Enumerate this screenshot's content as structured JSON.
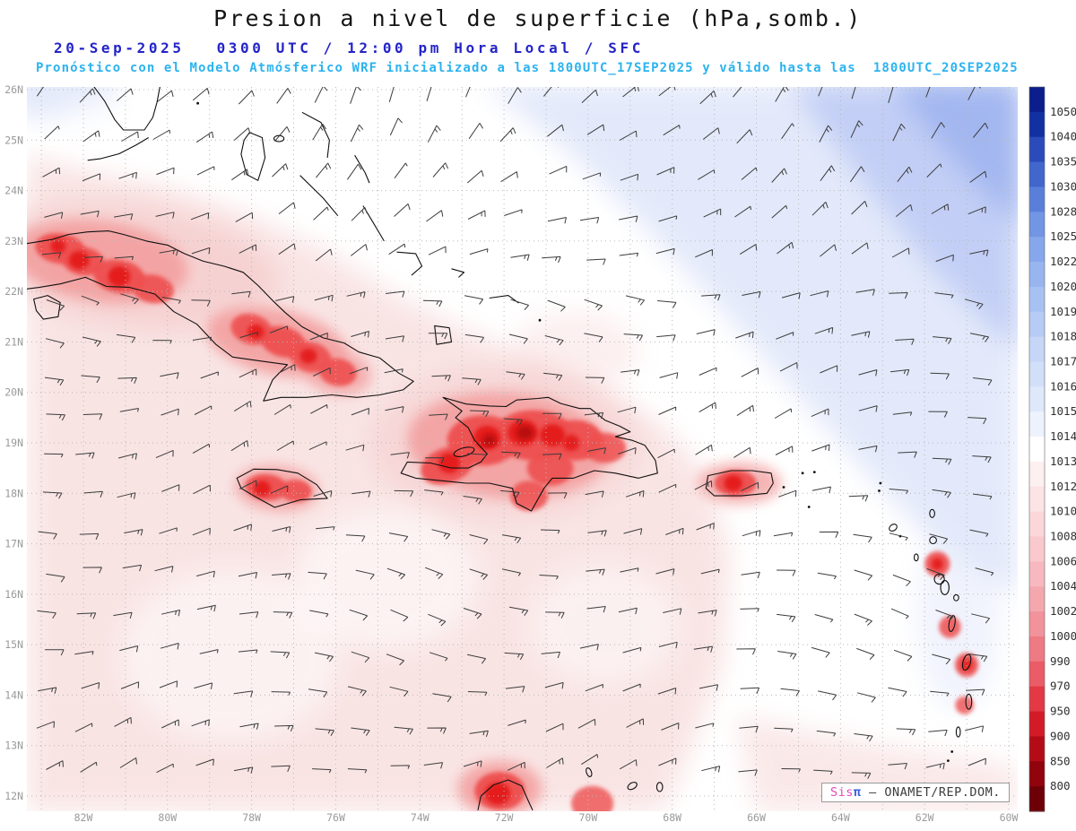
{
  "title": "Presion a nivel de superficie (hPa,somb.)",
  "header": {
    "date": "20-Sep-2025",
    "time": "0300 UTC / 12:00 pm Hora Local / SFC",
    "forecast": "Pronóstico con el Modelo Atmósferico WRF inicializado a las 1800UTC_17SEP2025 y válido hasta las  1800UTC_20SEP2025",
    "date_color": "#2424c8",
    "forecast_color": "#2cb3ef"
  },
  "credit": {
    "brand_a": "Sis",
    "brand_b": "π",
    "sep": " — ",
    "org": "ONAMET/REP.DOM.",
    "brand_a_color": "#e24ab8",
    "brand_b_color": "#3a5fd9"
  },
  "chart_data": {
    "type": "heatmap",
    "title": "Presion a nivel de superficie (hPa,somb.)",
    "units": "hPa",
    "model_run": "WRF inicializado 1800UTC_17SEP2025",
    "valid": "20-Sep-2025 0300 UTC / 12:00 pm Hora Local / SFC",
    "lat_ticks": [
      "26N",
      "25N",
      "24N",
      "23N",
      "22N",
      "21N",
      "20N",
      "19N",
      "18N",
      "17N",
      "16N",
      "15N",
      "14N",
      "13N",
      "12N"
    ],
    "lon_ticks": [
      "82W",
      "80W",
      "78W",
      "76W",
      "74W",
      "72W",
      "70W",
      "68W",
      "66W",
      "64W",
      "62W",
      "60W"
    ],
    "lon_extent_w": [
      83.35,
      59.8
    ],
    "lat_extent_n": [
      11.7,
      26.05
    ],
    "colorbar": {
      "levels": [
        1050,
        1040,
        1035,
        1030,
        1028,
        1025,
        1022,
        1020,
        1019,
        1018,
        1017,
        1016,
        1015,
        1014,
        1013,
        1012,
        1010,
        1008,
        1006,
        1004,
        1002,
        1000,
        990,
        970,
        950,
        900,
        850,
        800
      ],
      "colors": [
        "#0b1e8c",
        "#1230a2",
        "#2b4bba",
        "#4166cc",
        "#5a7fda",
        "#7295e4",
        "#87a7ec",
        "#99b5f0",
        "#a8c1f3",
        "#b7ccf5",
        "#c5d6f7",
        "#d2dff9",
        "#dfe8fb",
        "#edf2fd",
        "#ffffff",
        "#fdf0f1",
        "#fce3e5",
        "#fbd7da",
        "#f9c9ce",
        "#f7b9bf",
        "#f5a7ae",
        "#f2929b",
        "#ee7a84",
        "#ea5c67",
        "#e23944",
        "#d21b27",
        "#b40c17",
        "#91030d",
        "#6d0007"
      ]
    },
    "palette": {
      "pink_pale": "#f9e3e3",
      "pink_band": "#f5cbcb",
      "red_halo": "#f39c9c",
      "red_mid": "#ee5050",
      "red_core": "#e41a1a",
      "red_dark": "#b50909",
      "blue_light": "#e2e8fa",
      "blue_mid": "#bfccf5",
      "blue_deep": "#9db2ef",
      "white": "#ffffff",
      "coast": "#101010",
      "grid": "#b8b8b8",
      "barb": "#3c3c3c",
      "axis_label": "#9a9a9a",
      "colorbar_label": "#303030"
    },
    "shading_summary": [
      {
        "region": "Atlantic, northeast corner (high pressure ridge)",
        "pressure_hPa": "1016-1022 blue shading"
      },
      {
        "region": "Open ocean / Caribbean basin",
        "pressure_hPa": "1012-1014 white to pale pink"
      },
      {
        "region": "Cuba, Jamaica, Hispaniola, Puerto Rico, Lesser Antilles, Guajira (heat lows over land)",
        "pressure_hPa": "1000-1008 red cores"
      }
    ],
    "wind_barbs": "surface wind barbs, easterly to northeasterly trades, ~5-15 kt"
  }
}
